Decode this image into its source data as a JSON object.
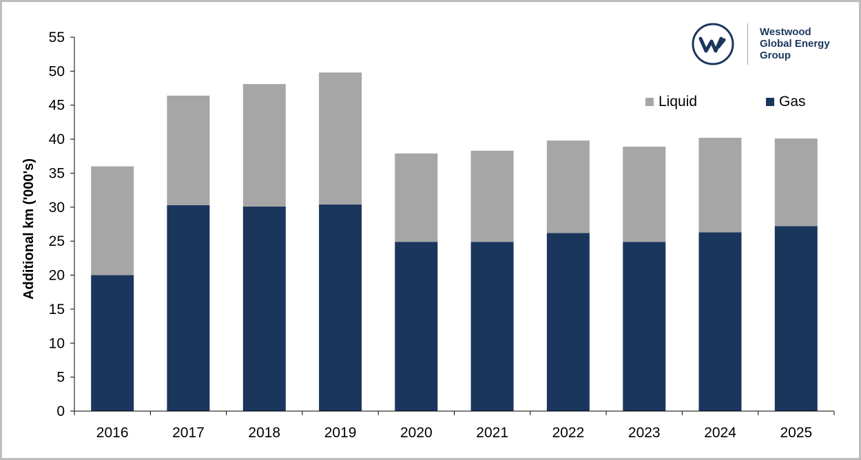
{
  "brand": {
    "lines": [
      "Westwood",
      "Global Energy",
      "Group"
    ],
    "monogram": "W"
  },
  "colors": {
    "gas": "#1b365d",
    "liquid": "#a6a6a6",
    "axis": "#000000",
    "frame": "#bdbdbd"
  },
  "legend": {
    "liquid": "Liquid",
    "gas": "Gas"
  },
  "chart_data": {
    "type": "bar",
    "stacked": true,
    "ylabel": "Additional km ('000's)",
    "xlabel": "",
    "ylim": [
      0,
      55
    ],
    "yticks": [
      0,
      5,
      10,
      15,
      20,
      25,
      30,
      35,
      40,
      45,
      50,
      55
    ],
    "categories": [
      "2016",
      "2017",
      "2018",
      "2019",
      "2020",
      "2021",
      "2022",
      "2023",
      "2024",
      "2025"
    ],
    "series": [
      {
        "name": "Gas",
        "values": [
          20.0,
          30.3,
          30.1,
          30.4,
          24.9,
          24.9,
          26.2,
          24.9,
          26.3,
          27.2
        ]
      },
      {
        "name": "Liquid",
        "values": [
          16.0,
          16.1,
          18.0,
          19.4,
          13.0,
          13.4,
          13.6,
          14.0,
          13.9,
          12.9
        ]
      }
    ],
    "grid": false,
    "legend_position": "top-right"
  }
}
